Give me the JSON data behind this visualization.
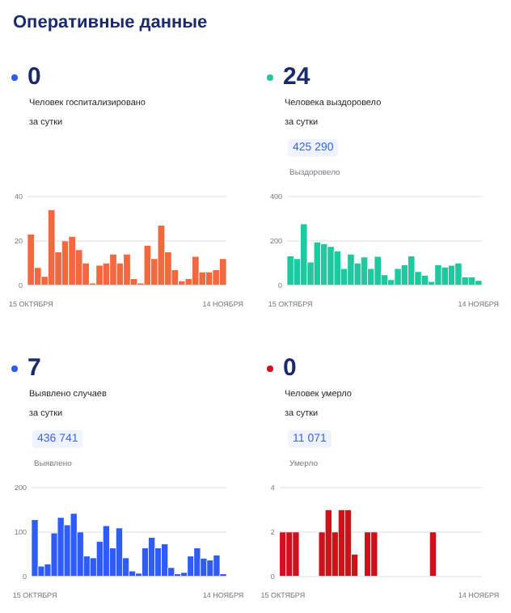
{
  "chart_data": [
    {
      "type": "other",
      "title": "Оперативные данные"
    },
    {
      "type": "bar",
      "title": "Человек госпитализировано\nза сутки",
      "annotations": [
        "0"
      ],
      "color": "#f4683f",
      "categories": [
        "15 ОКТЯБРЯ",
        null,
        null,
        null,
        null,
        null,
        null,
        null,
        null,
        null,
        null,
        null,
        null,
        null,
        null,
        null,
        null,
        null,
        null,
        null,
        null,
        null,
        null,
        null,
        null,
        null,
        null,
        null,
        "14 НОЯБРЯ"
      ],
      "values": [
        23,
        8,
        4,
        34,
        15,
        20,
        22,
        16,
        10,
        1,
        9,
        10,
        14,
        10,
        14,
        3,
        1,
        18,
        12,
        27,
        15,
        7,
        2,
        3,
        13,
        6,
        6,
        7,
        12
      ],
      "ylim": [
        0,
        40
      ],
      "yticks": [
        0,
        20,
        40
      ],
      "grid": "y",
      "legend": false
    },
    {
      "type": "bar",
      "title": "Человека выздоровело\nза сутки",
      "annotations": [
        "24",
        "425 290",
        "Выздоровело"
      ],
      "color": "#1ec9a0",
      "categories": [
        "15 ОКТЯБРЯ",
        null,
        null,
        null,
        null,
        null,
        null,
        null,
        null,
        null,
        null,
        null,
        null,
        null,
        null,
        null,
        null,
        null,
        null,
        null,
        null,
        null,
        null,
        null,
        null,
        null,
        null,
        null,
        "14 НОЯБРЯ"
      ],
      "values": [
        132,
        120,
        277,
        105,
        195,
        187,
        175,
        155,
        75,
        140,
        100,
        127,
        75,
        130,
        47,
        25,
        75,
        92,
        132,
        62,
        45,
        17,
        92,
        82,
        90,
        100,
        37,
        37,
        22
      ],
      "ylim": [
        0,
        400
      ],
      "yticks": [
        0,
        200,
        400
      ],
      "grid": "y",
      "legend": false
    },
    {
      "type": "bar",
      "title": "Выявлено случаев\nза сутки",
      "annotations": [
        "7",
        "436 741",
        "Выявлено"
      ],
      "color": "#2e5cf5",
      "categories": [
        "15 ОКТЯБРЯ",
        null,
        null,
        null,
        null,
        null,
        null,
        null,
        null,
        null,
        null,
        null,
        null,
        null,
        null,
        null,
        null,
        null,
        null,
        null,
        null,
        null,
        null,
        null,
        null,
        null,
        null,
        null,
        null,
        "14 НОЯБРЯ"
      ],
      "values": [
        128,
        23,
        28,
        98,
        133,
        116,
        142,
        100,
        46,
        42,
        79,
        114,
        64,
        109,
        42,
        12,
        7,
        64,
        88,
        64,
        73,
        20,
        6,
        9,
        46,
        64,
        41,
        37,
        48,
        6
      ],
      "ylim": [
        0,
        200
      ],
      "yticks": [
        0,
        100,
        200
      ],
      "grid": "y",
      "legend": false
    },
    {
      "type": "bar",
      "title": "Человек умерло\nза сутки",
      "annotations": [
        "0",
        "11 071",
        "Умерло"
      ],
      "color": "#d0101b",
      "categories": [
        "15 ОКТЯБРЯ",
        null,
        null,
        null,
        null,
        null,
        null,
        null,
        null,
        null,
        null,
        null,
        null,
        null,
        null,
        null,
        null,
        null,
        null,
        null,
        null,
        null,
        null,
        null,
        null,
        null,
        null,
        null,
        null,
        null,
        "14 НОЯБРЯ"
      ],
      "values": [
        2,
        2,
        2,
        0,
        0,
        0,
        2,
        3,
        2,
        3,
        3,
        1,
        0,
        2,
        2,
        0,
        0,
        0,
        0,
        0,
        0,
        0,
        0,
        2,
        0,
        0,
        0,
        0,
        0,
        0,
        0
      ],
      "ylim": [
        0,
        4
      ],
      "yticks": [
        0,
        2,
        4
      ],
      "grid": "y",
      "legend": false
    }
  ]
}
